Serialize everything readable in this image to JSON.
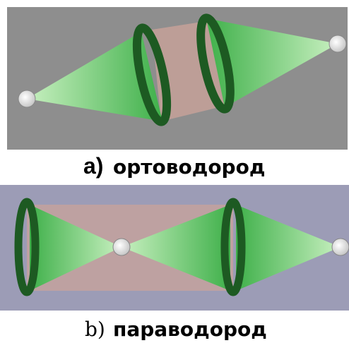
{
  "panels": [
    {
      "label": "a)",
      "caption": "ортоводород"
    },
    {
      "label": "b)",
      "caption": "параводород"
    }
  ]
}
